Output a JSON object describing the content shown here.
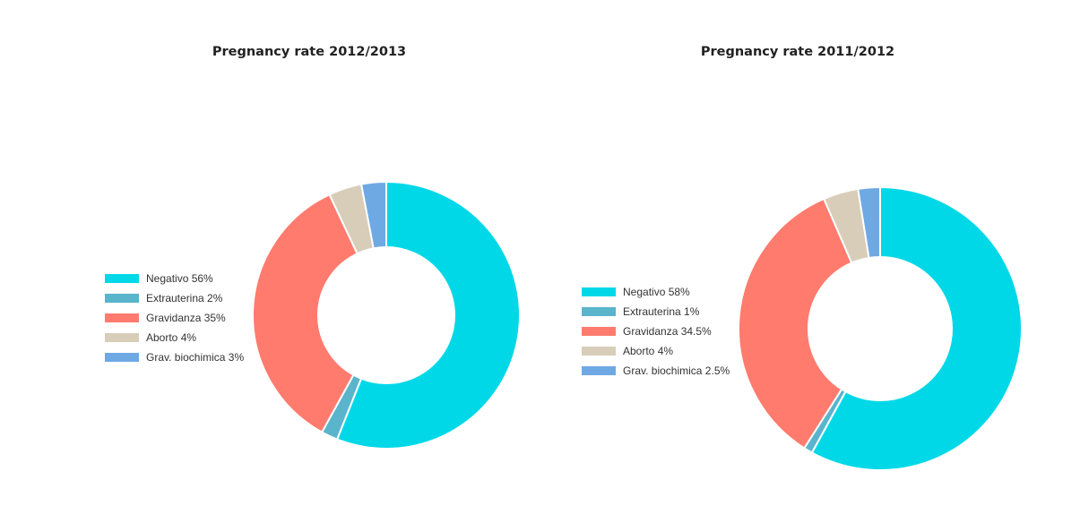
{
  "chart_data": [
    {
      "type": "pie",
      "title": "Pregnancy rate 2012/2013",
      "categories": [
        "Negativo",
        "Extrauterina",
        "Gravidanza",
        "Aborto",
        "Grav. biochimica"
      ],
      "values": [
        56,
        2,
        35,
        4,
        3
      ],
      "legend_labels": [
        "Negativo 56%",
        "Extrauterina 2%",
        "Gravidanza 35%",
        "Aborto 4%",
        "Grav. biochimica 3%"
      ],
      "colors": [
        "#00d8e8",
        "#5ab4cc",
        "#ff7b6e",
        "#d8cdb8",
        "#6ea9e4"
      ],
      "legend_position": "left",
      "donut": true
    },
    {
      "type": "pie",
      "title": "Pregnancy rate 2011/2012",
      "categories": [
        "Negativo",
        "Extrauterina",
        "Gravidanza",
        "Aborto",
        "Grav. biochimica"
      ],
      "values": [
        58,
        1,
        34.5,
        4,
        2.5
      ],
      "legend_labels": [
        "Negativo 58%",
        "Extrauterina 1%",
        "Gravidanza 34.5%",
        "Aborto 4%",
        "Grav. biochimica 2.5%"
      ],
      "colors": [
        "#00d8e8",
        "#5ab4cc",
        "#ff7b6e",
        "#d8cdb8",
        "#6ea9e4"
      ],
      "legend_position": "left",
      "donut": true
    }
  ]
}
